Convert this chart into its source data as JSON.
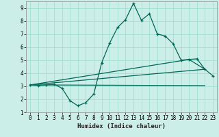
{
  "title": "",
  "xlabel": "Humidex (Indice chaleur)",
  "xlim": [
    -0.5,
    23.5
  ],
  "ylim": [
    1,
    9.5
  ],
  "bg_color": "#cceee8",
  "grid_color": "#99ddcc",
  "line_color": "#006655",
  "x_ticks": [
    0,
    1,
    2,
    3,
    4,
    5,
    6,
    7,
    8,
    9,
    10,
    11,
    12,
    13,
    14,
    15,
    16,
    17,
    18,
    19,
    20,
    21,
    22,
    23
  ],
  "y_ticks": [
    1,
    2,
    3,
    4,
    5,
    6,
    7,
    8,
    9
  ],
  "curve1_x": [
    0,
    1,
    2,
    3,
    4,
    5,
    6,
    7,
    8,
    9,
    10,
    11,
    12,
    13,
    14,
    15,
    16,
    17,
    18,
    19,
    20,
    21,
    22,
    23
  ],
  "curve1_y": [
    3.1,
    3.05,
    3.1,
    3.15,
    2.85,
    1.9,
    1.5,
    1.75,
    2.4,
    4.8,
    6.3,
    7.5,
    8.1,
    9.35,
    8.05,
    8.55,
    7.0,
    6.85,
    6.25,
    5.0,
    5.05,
    5.1,
    4.3,
    3.8
  ],
  "curve2_x": [
    0,
    22
  ],
  "curve2_y": [
    3.1,
    3.05
  ],
  "curve3_x": [
    0,
    20,
    22
  ],
  "curve3_y": [
    3.1,
    5.05,
    4.3
  ],
  "curve4_x": [
    0,
    22
  ],
  "curve4_y": [
    3.1,
    4.3
  ]
}
